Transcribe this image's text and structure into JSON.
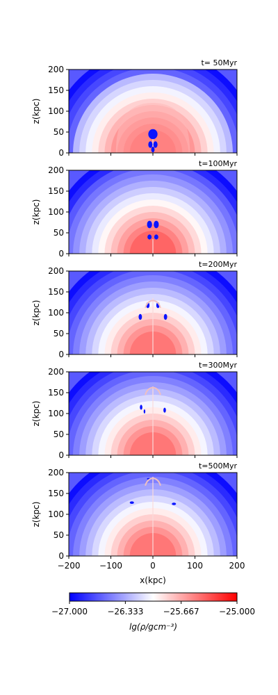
{
  "chart_data": {
    "type": "heatmap",
    "panels": [
      {
        "time_label": "t= 50Myr",
        "time_myr": 50
      },
      {
        "time_label": "t=100Myr",
        "time_myr": 100
      },
      {
        "time_label": "t=200Myr",
        "time_myr": 200
      },
      {
        "time_label": "t=300Myr",
        "time_myr": 300
      },
      {
        "time_label": "t=500Myr",
        "time_myr": 500
      }
    ],
    "xlabel": "x(kpc)",
    "ylabel": "z(kpc)",
    "xlim": [
      -200,
      200
    ],
    "ylim": [
      0,
      200
    ],
    "x_ticks": [
      -200,
      -100,
      0,
      100,
      200
    ],
    "x_tick_labels": [
      "−200",
      "−100",
      "0",
      "100",
      "200"
    ],
    "y_ticks": [
      0,
      50,
      100,
      150,
      200
    ],
    "y_tick_labels": [
      "0",
      "50",
      "100",
      "150",
      "200"
    ],
    "colorbar": {
      "label": "lg(ρ/gcm⁻³)",
      "range": [
        -27.0,
        -25.0
      ],
      "ticks": [
        -27.0,
        -26.333,
        -25.667,
        -25.0
      ],
      "tick_labels": [
        "−27.000",
        "−26.333",
        "−25.667",
        "−25.000"
      ],
      "colors": [
        "#0000ff",
        "#ffffff",
        "#ff0000"
      ]
    }
  }
}
